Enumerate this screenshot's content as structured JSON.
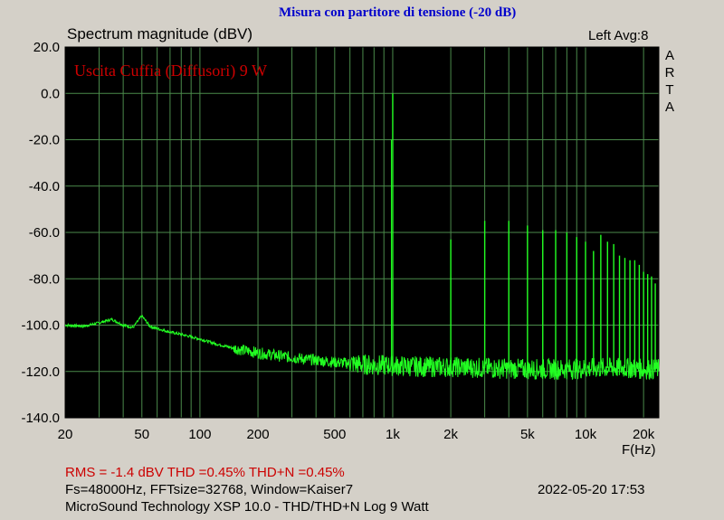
{
  "header": {
    "top_title": "Misura con partitore di tensione (-20 dB)",
    "plot_title": "Spectrum magnitude (dBV)",
    "channel_info": "Left  Avg:8",
    "brand_letters": [
      "A",
      "R",
      "T",
      "A"
    ]
  },
  "colors": {
    "background": "#d4d0c8",
    "plot_background": "#000000",
    "grid": "#4b8a4b",
    "trace": "#22ff22",
    "annotation": "#cc0000",
    "top_title": "#0000cc"
  },
  "chart_data": {
    "type": "line",
    "title": "Spectrum magnitude (dBV)",
    "annotation": "Uscita Cuffia (Diffusori) 9 W",
    "xlabel": "F(Hz)",
    "ylabel": "",
    "xscale": "log",
    "xlim": [
      20,
      24000
    ],
    "ylim": [
      -140,
      20
    ],
    "grid": true,
    "y_ticks": [
      20,
      0,
      -20,
      -40,
      -60,
      -80,
      -100,
      -120,
      -140
    ],
    "y_tick_labels": [
      "20.0",
      "0.0",
      "-20.0",
      "-40.0",
      "-60.0",
      "-80.0",
      "-100.0",
      "-120.0",
      "-140.0"
    ],
    "x_ticks": [
      20,
      50,
      100,
      200,
      500,
      1000,
      2000,
      5000,
      10000,
      20000
    ],
    "x_tick_labels": [
      "20",
      "50",
      "100",
      "200",
      "500",
      "1k",
      "2k",
      "5k",
      "10k",
      "20k"
    ],
    "series": [
      {
        "noise_floor": {
          "x": [
            20,
            25,
            30,
            35,
            40,
            45,
            50,
            55,
            60,
            70,
            80,
            100,
            120,
            150,
            200,
            300,
            500,
            700,
            1000,
            1500,
            2000,
            3000,
            5000,
            8000,
            12000,
            16000,
            20000,
            24000
          ],
          "y": [
            -100,
            -100.5,
            -99,
            -97.5,
            -100,
            -101,
            -96,
            -100.5,
            -101.5,
            -103,
            -104,
            -106,
            -108,
            -110,
            -112,
            -114,
            -116,
            -117,
            -117.5,
            -118,
            -118,
            -118.5,
            -119,
            -119,
            -118.5,
            -118.5,
            -119,
            -119
          ]
        },
        "harmonics": {
          "x": [
            1000,
            2000,
            3000,
            4000,
            5000,
            6000,
            7000,
            8000,
            9000,
            10000,
            11000,
            12000,
            13000,
            14000,
            15000,
            16000,
            17000,
            18000,
            19000,
            20000,
            21000,
            22000,
            23000
          ],
          "y": [
            0,
            -63,
            -55,
            -55,
            -57,
            -59,
            -59,
            -60,
            -62,
            -64,
            -68,
            -61,
            -64,
            -65,
            -70,
            -71,
            -72,
            -72,
            -74,
            -77,
            -78,
            -79,
            -82
          ]
        },
        "skirt": {
          "x": 1000,
          "y": -20
        }
      }
    ]
  },
  "footer": {
    "rms_line": "RMS =   -1.4 dBV   THD =0.45%   THD+N =0.45%",
    "info_line": "Fs=48000Hz, FFTsize=32768, Window=Kaiser7",
    "date_line": "2022-05-20  17:53",
    "software_line": "MicroSound Technology XSP 10.0 - THD/THD+N Log 9 Watt"
  }
}
